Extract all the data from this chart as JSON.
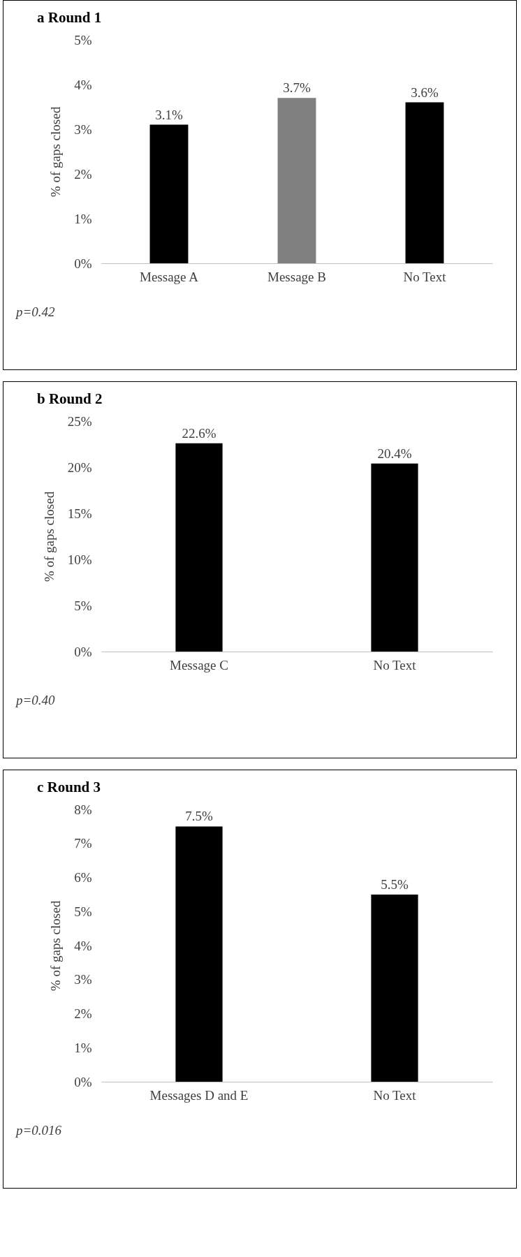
{
  "chart_data": [
    {
      "type": "bar",
      "title": "a  Round 1",
      "ylabel": "% of gaps closed",
      "categories": [
        "Message A",
        "Message B",
        "No Text"
      ],
      "values": [
        3.1,
        3.7,
        3.6
      ],
      "colors": [
        "#000000",
        "#808080",
        "#000000"
      ],
      "value_labels": [
        "3.1%",
        "3.7%",
        "3.6%"
      ],
      "ylim": [
        0,
        5
      ],
      "yticks": [
        {
          "value": 0,
          "label": "0%"
        },
        {
          "value": 1,
          "label": "1%"
        },
        {
          "value": 2,
          "label": "2%"
        },
        {
          "value": 3,
          "label": "3%"
        },
        {
          "value": 4,
          "label": "4%"
        },
        {
          "value": 5,
          "label": "5%"
        }
      ],
      "annotations": [
        "p=0.42"
      ]
    },
    {
      "type": "bar",
      "title": "b  Round 2",
      "ylabel": "% of gaps closed",
      "categories": [
        "Message C",
        "No Text"
      ],
      "values": [
        22.6,
        20.4
      ],
      "colors": [
        "#000000",
        "#000000"
      ],
      "value_labels": [
        "22.6%",
        "20.4%"
      ],
      "ylim": [
        0,
        25
      ],
      "yticks": [
        {
          "value": 0,
          "label": "0%"
        },
        {
          "value": 5,
          "label": "5%"
        },
        {
          "value": 10,
          "label": "10%"
        },
        {
          "value": 15,
          "label": "15%"
        },
        {
          "value": 20,
          "label": "20%"
        },
        {
          "value": 25,
          "label": "25%"
        }
      ],
      "annotations": [
        "p=0.40"
      ]
    },
    {
      "type": "bar",
      "title": "c  Round 3",
      "ylabel": "% of gaps closed",
      "categories": [
        "Messages D and E",
        "No Text"
      ],
      "values": [
        7.5,
        5.5
      ],
      "colors": [
        "#000000",
        "#000000"
      ],
      "value_labels": [
        "7.5%",
        "5.5%"
      ],
      "ylim": [
        0,
        8
      ],
      "yticks": [
        {
          "value": 0,
          "label": "0%"
        },
        {
          "value": 1,
          "label": "1%"
        },
        {
          "value": 2,
          "label": "2%"
        },
        {
          "value": 3,
          "label": "3%"
        },
        {
          "value": 4,
          "label": "4%"
        },
        {
          "value": 5,
          "label": "5%"
        },
        {
          "value": 6,
          "label": "6%"
        },
        {
          "value": 7,
          "label": "7%"
        },
        {
          "value": 8,
          "label": "8%"
        }
      ],
      "annotations": [
        "p=0.016"
      ]
    }
  ]
}
